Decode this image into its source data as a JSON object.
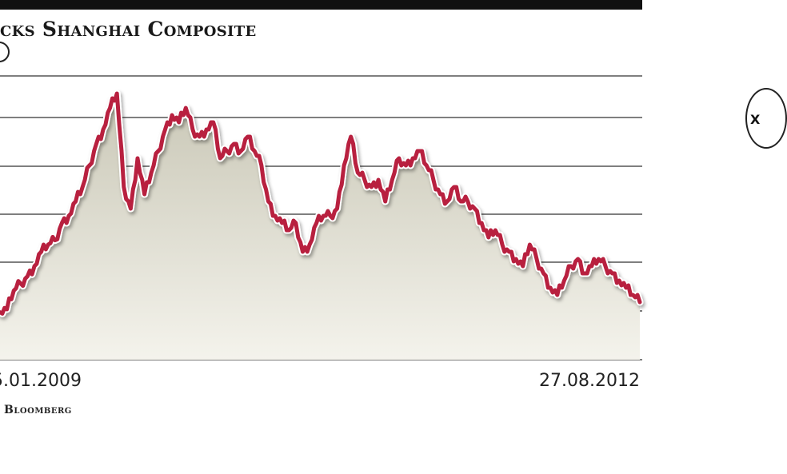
{
  "header": {
    "title": "cks Shanghai Composite",
    "side_badge_text": "X"
  },
  "footer": {
    "source": ": Bloomberg"
  },
  "colors": {
    "line": "#b8203f",
    "fill_top": "#c9c7b6",
    "fill_bottom": "#f4f3ec",
    "grid": "#333333"
  },
  "chart_data": {
    "type": "line",
    "title": "cks Shanghai Composite",
    "xlabel": "",
    "ylabel": "",
    "x_tick_labels": [
      "5.01.2009",
      "27.08.2012"
    ],
    "grid": true,
    "series": [
      {
        "values": [
          1930,
          1950,
          2080,
          2130,
          2180,
          2250,
          2350,
          2400,
          2430,
          2550,
          2600,
          2700,
          2800,
          2950,
          3100,
          3200,
          3350,
          3450,
          2800,
          2650,
          3000,
          2750,
          2900,
          3050,
          3200,
          3300,
          3250,
          3350,
          3200,
          3150,
          3200,
          3250,
          3000,
          3050,
          3100,
          3050,
          3150,
          3050,
          2950,
          2700,
          2600,
          2550,
          2500,
          2550,
          2350,
          2400,
          2550,
          2600,
          2600,
          2650,
          2950,
          3150,
          2900,
          2850,
          2800,
          2850,
          2700,
          2850,
          3000,
          2950,
          3000,
          3050,
          2950,
          2850,
          2750,
          2700,
          2800,
          2700,
          2700,
          2650,
          2550,
          2450,
          2500,
          2400,
          2350,
          2300,
          2250,
          2400,
          2300,
          2200,
          2100,
          2050,
          2150,
          2250,
          2300,
          2200,
          2250,
          2300,
          2250,
          2200,
          2150,
          2100,
          2050,
          2000
        ]
      }
    ]
  }
}
